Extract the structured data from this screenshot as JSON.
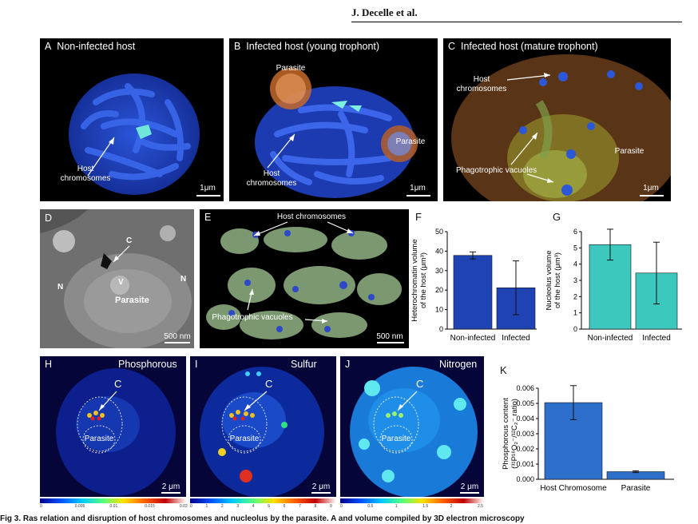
{
  "header": {
    "author": "J. Decelle et al."
  },
  "panels": {
    "A": {
      "letter": "A",
      "title": "Non-infected host",
      "label1": "Host",
      "label2": "chromosomes",
      "scale": "1μm"
    },
    "B": {
      "letter": "B",
      "title": "Infected host (young trophont)",
      "parasite1": "Parasite",
      "parasite2": "Parasite",
      "label1": "Host",
      "label2": "chromosomes",
      "scale": "1μm"
    },
    "C": {
      "letter": "C",
      "title": "Infected host (mature trophont)",
      "label1": "Host",
      "label2": "chromosomes",
      "parasite": "Parasite",
      "vacuoles": "Phagotrophic vacuoles",
      "scale": "1μm"
    },
    "D": {
      "letter": "D",
      "c": "C",
      "n1": "N",
      "n2": "N",
      "v": "V",
      "parasite": "Parasite",
      "scale": "500 nm"
    },
    "E": {
      "letter": "E",
      "chromosomes": "Host  chromosomes",
      "vacuoles": "Phagotrophic vacuoles",
      "scale": "500 nm"
    },
    "H": {
      "letter": "H",
      "title": "Phosphorous",
      "c": "C",
      "parasite": "Parasite",
      "scale": "2 μm",
      "ticks": [
        "0",
        "0.005",
        "0.01",
        "0.015",
        "0.02"
      ]
    },
    "I": {
      "letter": "I",
      "title": "Sulfur",
      "c": "C",
      "parasite": "Parasite",
      "scale": "2 μm",
      "ticks": [
        "0",
        "1",
        "2",
        "3",
        "4",
        "5",
        "6",
        "7",
        "8",
        "9"
      ]
    },
    "J": {
      "letter": "J",
      "title": "Nitrogen",
      "c": "C",
      "parasite": "Parasite",
      "scale": "2 μm",
      "ticks": [
        "0",
        "0.5",
        "1",
        "1.5",
        "2",
        "2.5"
      ]
    }
  },
  "chart_data": [
    {
      "id": "F",
      "type": "bar",
      "panel_letter": "F",
      "categories": [
        "Non-infected",
        "Infected"
      ],
      "values": [
        37.8,
        21.2
      ],
      "errors": [
        1.8,
        13.8
      ],
      "ylabel_line1": "Heterochromatin volume",
      "ylabel_line2": "of the host (μm³)",
      "ylim": [
        0,
        50
      ],
      "yticks": [
        "0",
        "10",
        "20",
        "30",
        "40",
        "50"
      ],
      "color": "#2043b4"
    },
    {
      "id": "G",
      "type": "bar",
      "panel_letter": "G",
      "categories": [
        "Non-infected",
        "Infected"
      ],
      "values": [
        5.2,
        3.45
      ],
      "errors": [
        0.95,
        1.9
      ],
      "ylabel_line1": "Nucleolus volume",
      "ylabel_line2": "of the host (μm³)",
      "ylim": [
        0,
        6
      ],
      "yticks": [
        "0",
        "1",
        "2",
        "3",
        "4",
        "5",
        "6"
      ],
      "color": "#3dc8be"
    },
    {
      "id": "K",
      "type": "bar",
      "panel_letter": "K",
      "categories": [
        "Host Chromosome",
        "Parasite"
      ],
      "values": [
        0.00505,
        0.0005
      ],
      "errors": [
        0.00112,
        6e-05
      ],
      "ylabel_line1": "Phosphorous content",
      "ylabel_line2": "(³¹P¹⁶O₂⁻/¹²C₂⁻ ratio)",
      "ylim": [
        0,
        0.006
      ],
      "yticks": [
        "0.000",
        "0.001",
        "0.002",
        "0.003",
        "0.004",
        "0.005",
        "0.006"
      ],
      "color": "#2f6fcc"
    }
  ],
  "caption": "Fig 3.  Ras relation and disruption of host chromosomes and nucleolus by the parasite. A and volume compiled by 3D electron microscopy"
}
